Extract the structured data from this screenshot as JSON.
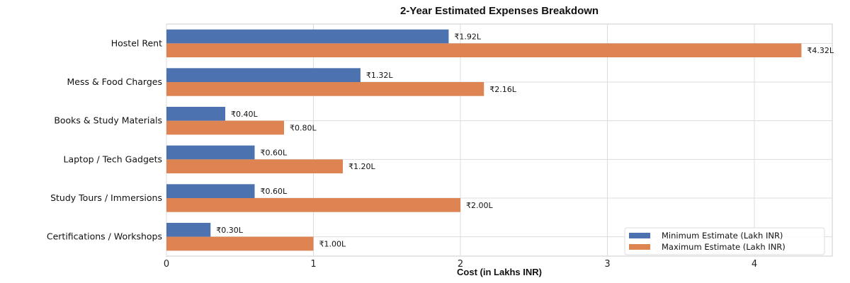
{
  "chart_data": {
    "type": "bar",
    "orientation": "horizontal",
    "title": "2-Year Estimated Expenses Breakdown",
    "xlabel": "Cost (in Lakhs INR)",
    "ylabel": "",
    "xlim": [
      0,
      4.53
    ],
    "xticks": [
      0,
      1,
      2,
      3,
      4
    ],
    "grid": true,
    "legend_position": "bottom-right",
    "categories": [
      "Hostel Rent",
      "Mess & Food Charges",
      "Books & Study Materials",
      "Laptop / Tech Gadgets",
      "Study Tours / Immersions",
      "Certifications / Workshops"
    ],
    "series": [
      {
        "name": "Minimum Estimate (Lakh INR)",
        "color": "#4c72b0",
        "values": [
          1.92,
          1.32,
          0.4,
          0.6,
          0.6,
          0.3
        ],
        "labels": [
          "₹1.92L",
          "₹1.32L",
          "₹0.40L",
          "₹0.60L",
          "₹0.60L",
          "₹0.30L"
        ]
      },
      {
        "name": "Maximum Estimate (Lakh INR)",
        "color": "#dd8452",
        "values": [
          4.32,
          2.16,
          0.8,
          1.2,
          2.0,
          1.0
        ],
        "labels": [
          "₹4.32L",
          "₹2.16L",
          "₹0.80L",
          "₹1.20L",
          "₹2.00L",
          "₹1.00L"
        ]
      }
    ]
  }
}
